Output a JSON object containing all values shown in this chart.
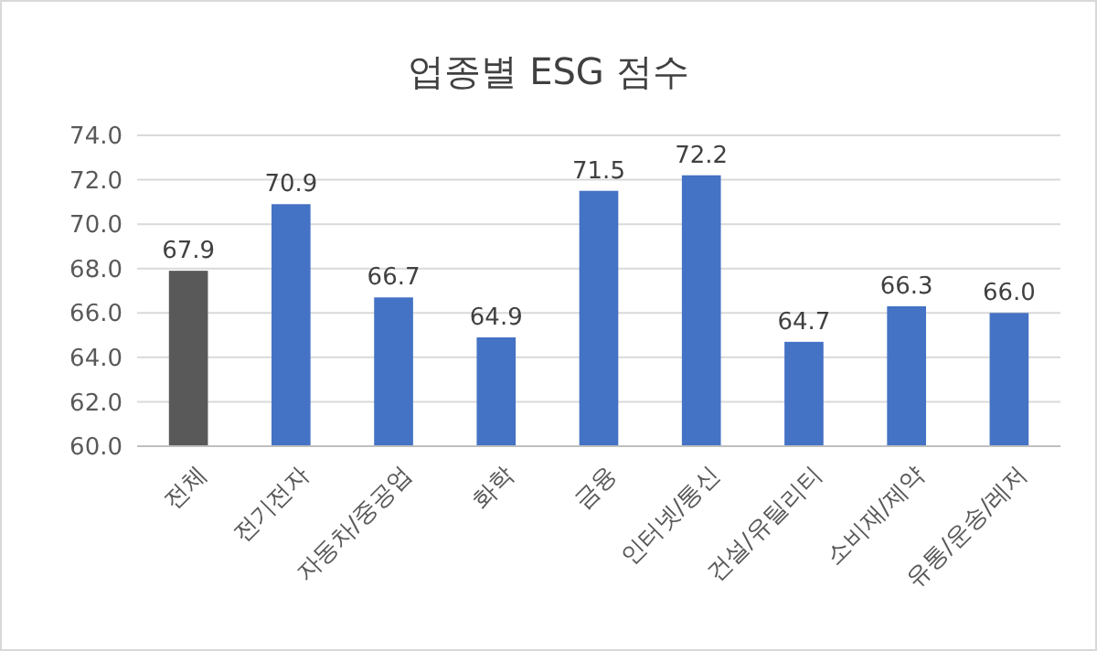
{
  "chart_data": {
    "type": "bar",
    "title": "업종별 ESG 점수",
    "categories": [
      "전체",
      "전기전자",
      "자동차/중공업",
      "화학",
      "금융",
      "인터넷/통신",
      "건설/유틸리티",
      "소비재/제약",
      "유통/운송/레저"
    ],
    "values": [
      67.9,
      70.9,
      66.7,
      64.9,
      71.5,
      72.2,
      64.7,
      66.3,
      66.0
    ],
    "colors": [
      "#595959",
      "#4472c4",
      "#4472c4",
      "#4472c4",
      "#4472c4",
      "#4472c4",
      "#4472c4",
      "#4472c4",
      "#4472c4"
    ],
    "ylim": [
      60,
      74
    ],
    "yticks": [
      {
        "value": 60,
        "label": "60.0"
      },
      {
        "value": 62,
        "label": "62.0"
      },
      {
        "value": 64,
        "label": "64.0"
      },
      {
        "value": 66,
        "label": "66.0"
      },
      {
        "value": 68,
        "label": "68.0"
      },
      {
        "value": 70,
        "label": "70.0"
      },
      {
        "value": 72,
        "label": "72.0"
      },
      {
        "value": 74,
        "label": "74.0"
      }
    ],
    "value_labels": [
      "67.9",
      "70.9",
      "66.7",
      "64.9",
      "71.5",
      "72.2",
      "64.7",
      "66.3",
      "66.0"
    ],
    "grid": "y"
  }
}
